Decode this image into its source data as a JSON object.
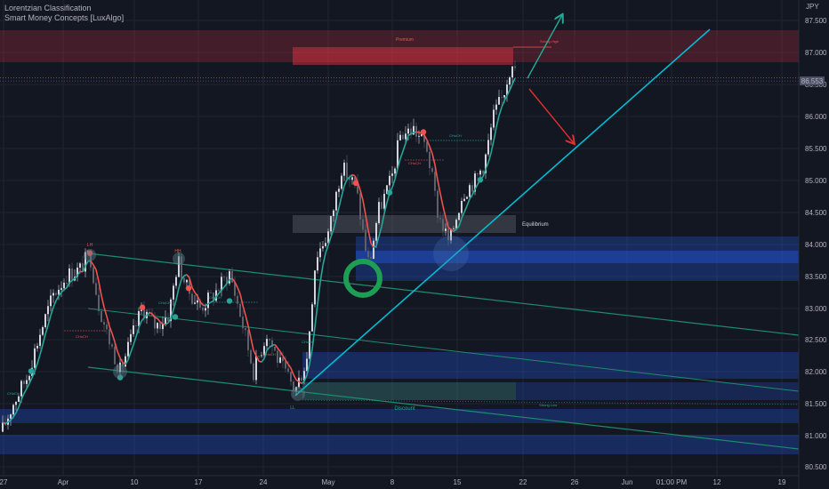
{
  "indicators": [
    "Lorentzian Classification",
    "Smart Money Concepts [LuxAlgo]"
  ],
  "chart_data": {
    "type": "candlestick",
    "currency_label": "JPY",
    "y_ticks": [
      "87.500",
      "87.000",
      "86.500",
      "86.000",
      "85.500",
      "85.000",
      "84.500",
      "84.000",
      "83.500",
      "83.000",
      "82.500",
      "82.000",
      "81.500",
      "81.000",
      "80.500"
    ],
    "x_ticks": [
      "27",
      "Apr",
      "10",
      "17",
      "24",
      "May",
      "8",
      "15",
      "22",
      "26",
      "Jun",
      "01:00 PM",
      "12",
      "19"
    ],
    "last_price_label": "86.553",
    "zones": {
      "premium": "Premium",
      "equilibrium": "Equilibrium",
      "discount": "Discount"
    },
    "labels": {
      "strong_high": "Strong High",
      "strong_low": "Strong Low",
      "lh": "LH",
      "ll": "LL",
      "hh": "HH"
    },
    "choch_labels": [
      "CHoCH",
      "CHoCH",
      "CHoCH",
      "CHoCH",
      "CHoCH",
      "CHoCH",
      "CHoCH",
      "CHoCH"
    ],
    "colors": {
      "up": "#26a69a",
      "down": "#ef5350",
      "premium_zone": "#f23645",
      "discount_zone": "#2962ff",
      "trendline": "#00bcd4",
      "channel": "#1e8c6e",
      "arrow_up": "#22ab94",
      "arrow_down": "#e03030"
    }
  }
}
